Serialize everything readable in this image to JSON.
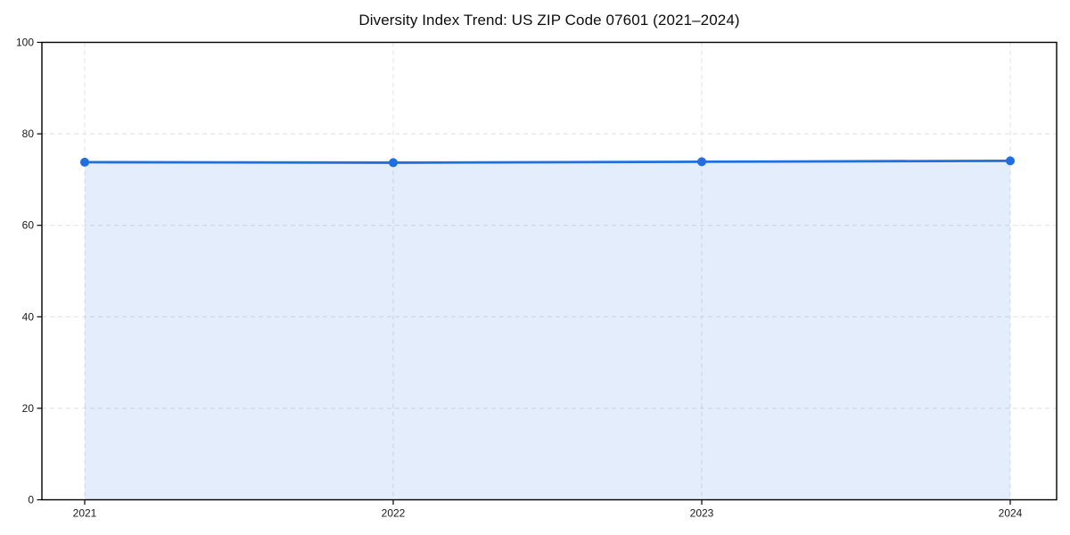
{
  "chart_data": {
    "type": "area",
    "title": "Diversity Index Trend: US ZIP Code 07601 (2021–2024)",
    "x": [
      2021,
      2022,
      2023,
      2024
    ],
    "xtick_labels": [
      "2021",
      "2022",
      "2023",
      "2024"
    ],
    "series": [
      {
        "name": "Diversity Index",
        "values": [
          73.8,
          73.7,
          73.9,
          74.1
        ]
      }
    ],
    "xlabel": "",
    "ylabel": "",
    "ylim": [
      0,
      100
    ],
    "yticks": [
      0,
      20,
      40,
      60,
      80,
      100
    ],
    "grid": true,
    "grid_style": "dashed",
    "legend": "none",
    "colors": {
      "line": "#1f6fe0",
      "marker": "#1f6fe0",
      "fill": "rgba(31, 111, 224, 0.12)",
      "grid": "#e0e0e0",
      "spine": "#000000",
      "tick_label": "#1a1a1a",
      "title": "#0d0d0d",
      "background": "#ffffff"
    }
  }
}
